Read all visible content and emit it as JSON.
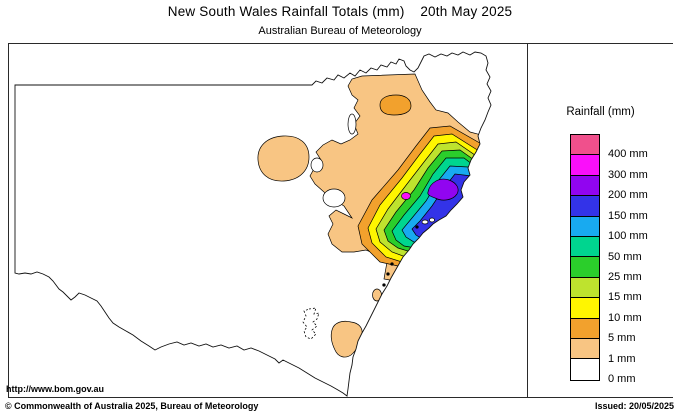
{
  "page": {
    "title": "New South Wales Rainfall Totals (mm)    20th May 2025",
    "subtitle": "Australian Bureau of Meteorology"
  },
  "map": {
    "url_label": "http://www.bom.gov.au"
  },
  "footer": {
    "copyright": "© Commonwealth of Australia 2025, Bureau of Meteorology",
    "issued": "Issued: 20/05/2025"
  },
  "legend": {
    "title": "Rainfall (mm)",
    "items": [
      {
        "label": "400 mm",
        "key": "p400"
      },
      {
        "label": "300 mm",
        "key": "p300"
      },
      {
        "label": "200 mm",
        "key": "p200"
      },
      {
        "label": "150 mm",
        "key": "p150"
      },
      {
        "label": "100 mm",
        "key": "p100"
      },
      {
        "label": "50 mm",
        "key": "p50"
      },
      {
        "label": "25 mm",
        "key": "p25"
      },
      {
        "label": "15 mm",
        "key": "p15"
      },
      {
        "label": "10 mm",
        "key": "p10"
      },
      {
        "label": "5 mm",
        "key": "p5"
      },
      {
        "label": "1 mm",
        "key": "p1"
      },
      {
        "label": "0 mm",
        "key": "p0"
      }
    ]
  },
  "palette": {
    "p400": "#F0508C",
    "p300": "#FA0FFA",
    "p200": "#9105F0",
    "p150": "#3333E8",
    "p100": "#18AAF0",
    "p50": "#00D58F",
    "p25": "#2BCE2B",
    "p15": "#BEE32E",
    "p10": "#FFF600",
    "p5": "#F2A12D",
    "p1": "#F8C583",
    "p0": "#FFFFFF"
  }
}
